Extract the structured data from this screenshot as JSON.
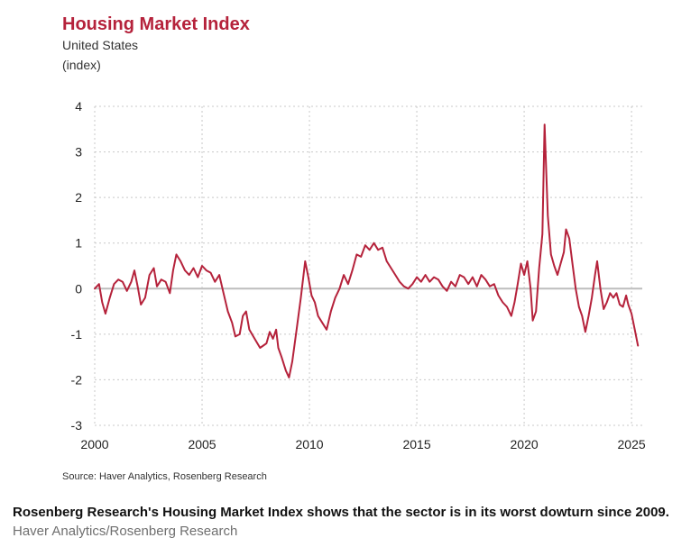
{
  "header": {
    "title": "Housing Market Index",
    "subtitle": "United States",
    "unit": "(index)"
  },
  "source_note": "Source: Haver Analytics, Rosenberg Research",
  "caption": {
    "text": "Rosenberg Research's Housing Market Index shows that the sector is in its worst dowturn since 2009.",
    "credit": "Haver Analytics/Rosenberg Research"
  },
  "colors": {
    "line": "#b5223b",
    "title": "#b5223b",
    "grid": "#c8c8c8",
    "zero_line": "#bdbdbd"
  },
  "chart_data": {
    "type": "line",
    "title": "Housing Market Index",
    "subtitle": "United States",
    "ylabel": "(index)",
    "xlabel": "",
    "xlim": [
      2000,
      2025.5
    ],
    "ylim": [
      -3,
      4
    ],
    "x_ticks": [
      2000,
      2005,
      2010,
      2015,
      2020,
      2025
    ],
    "y_ticks": [
      4,
      3,
      2,
      1,
      0,
      -1,
      -2,
      -3
    ],
    "grid": true,
    "legend": "none",
    "series": [
      {
        "values": [
          [
            2000.0,
            0.0
          ],
          [
            2000.2,
            0.1
          ],
          [
            2000.35,
            -0.3
          ],
          [
            2000.5,
            -0.55
          ],
          [
            2000.7,
            -0.2
          ],
          [
            2000.9,
            0.1
          ],
          [
            2001.1,
            0.2
          ],
          [
            2001.3,
            0.15
          ],
          [
            2001.5,
            -0.05
          ],
          [
            2001.7,
            0.15
          ],
          [
            2001.85,
            0.4
          ],
          [
            2002.0,
            0.05
          ],
          [
            2002.15,
            -0.35
          ],
          [
            2002.35,
            -0.2
          ],
          [
            2002.55,
            0.3
          ],
          [
            2002.75,
            0.45
          ],
          [
            2002.9,
            0.05
          ],
          [
            2003.1,
            0.2
          ],
          [
            2003.3,
            0.15
          ],
          [
            2003.5,
            -0.1
          ],
          [
            2003.65,
            0.4
          ],
          [
            2003.8,
            0.75
          ],
          [
            2004.0,
            0.6
          ],
          [
            2004.2,
            0.4
          ],
          [
            2004.4,
            0.3
          ],
          [
            2004.6,
            0.45
          ],
          [
            2004.8,
            0.25
          ],
          [
            2005.0,
            0.5
          ],
          [
            2005.2,
            0.4
          ],
          [
            2005.4,
            0.35
          ],
          [
            2005.6,
            0.15
          ],
          [
            2005.8,
            0.3
          ],
          [
            2006.0,
            -0.1
          ],
          [
            2006.2,
            -0.5
          ],
          [
            2006.4,
            -0.75
          ],
          [
            2006.55,
            -1.05
          ],
          [
            2006.75,
            -1.0
          ],
          [
            2006.9,
            -0.6
          ],
          [
            2007.05,
            -0.5
          ],
          [
            2007.2,
            -0.9
          ],
          [
            2007.45,
            -1.1
          ],
          [
            2007.7,
            -1.3
          ],
          [
            2007.85,
            -1.25
          ],
          [
            2008.0,
            -1.2
          ],
          [
            2008.15,
            -0.95
          ],
          [
            2008.3,
            -1.1
          ],
          [
            2008.45,
            -0.9
          ],
          [
            2008.55,
            -1.3
          ],
          [
            2008.7,
            -1.5
          ],
          [
            2008.9,
            -1.8
          ],
          [
            2009.05,
            -1.95
          ],
          [
            2009.2,
            -1.6
          ],
          [
            2009.4,
            -0.9
          ],
          [
            2009.6,
            -0.2
          ],
          [
            2009.8,
            0.6
          ],
          [
            2009.95,
            0.25
          ],
          [
            2010.1,
            -0.15
          ],
          [
            2010.25,
            -0.3
          ],
          [
            2010.4,
            -0.6
          ],
          [
            2010.6,
            -0.75
          ],
          [
            2010.8,
            -0.9
          ],
          [
            2011.0,
            -0.5
          ],
          [
            2011.2,
            -0.2
          ],
          [
            2011.4,
            0.0
          ],
          [
            2011.6,
            0.3
          ],
          [
            2011.8,
            0.1
          ],
          [
            2012.0,
            0.4
          ],
          [
            2012.2,
            0.75
          ],
          [
            2012.4,
            0.7
          ],
          [
            2012.6,
            0.95
          ],
          [
            2012.8,
            0.85
          ],
          [
            2013.0,
            1.0
          ],
          [
            2013.2,
            0.85
          ],
          [
            2013.4,
            0.9
          ],
          [
            2013.6,
            0.6
          ],
          [
            2013.8,
            0.45
          ],
          [
            2014.0,
            0.3
          ],
          [
            2014.2,
            0.15
          ],
          [
            2014.4,
            0.05
          ],
          [
            2014.6,
            0.0
          ],
          [
            2014.8,
            0.1
          ],
          [
            2015.0,
            0.25
          ],
          [
            2015.2,
            0.15
          ],
          [
            2015.4,
            0.3
          ],
          [
            2015.6,
            0.15
          ],
          [
            2015.8,
            0.25
          ],
          [
            2016.0,
            0.2
          ],
          [
            2016.2,
            0.05
          ],
          [
            2016.4,
            -0.05
          ],
          [
            2016.6,
            0.15
          ],
          [
            2016.8,
            0.05
          ],
          [
            2017.0,
            0.3
          ],
          [
            2017.2,
            0.25
          ],
          [
            2017.4,
            0.1
          ],
          [
            2017.6,
            0.25
          ],
          [
            2017.8,
            0.05
          ],
          [
            2018.0,
            0.3
          ],
          [
            2018.2,
            0.2
          ],
          [
            2018.4,
            0.05
          ],
          [
            2018.6,
            0.1
          ],
          [
            2018.8,
            -0.15
          ],
          [
            2019.0,
            -0.3
          ],
          [
            2019.2,
            -0.4
          ],
          [
            2019.4,
            -0.6
          ],
          [
            2019.55,
            -0.3
          ],
          [
            2019.7,
            0.1
          ],
          [
            2019.85,
            0.55
          ],
          [
            2020.0,
            0.3
          ],
          [
            2020.15,
            0.6
          ],
          [
            2020.3,
            0.0
          ],
          [
            2020.4,
            -0.7
          ],
          [
            2020.55,
            -0.5
          ],
          [
            2020.7,
            0.45
          ],
          [
            2020.85,
            1.2
          ],
          [
            2020.95,
            3.6
          ],
          [
            2021.1,
            1.6
          ],
          [
            2021.25,
            0.75
          ],
          [
            2021.4,
            0.5
          ],
          [
            2021.55,
            0.3
          ],
          [
            2021.7,
            0.55
          ],
          [
            2021.85,
            0.8
          ],
          [
            2021.95,
            1.3
          ],
          [
            2022.1,
            1.1
          ],
          [
            2022.25,
            0.55
          ],
          [
            2022.4,
            0.0
          ],
          [
            2022.55,
            -0.4
          ],
          [
            2022.7,
            -0.6
          ],
          [
            2022.85,
            -0.95
          ],
          [
            2023.0,
            -0.6
          ],
          [
            2023.15,
            -0.2
          ],
          [
            2023.3,
            0.3
          ],
          [
            2023.4,
            0.6
          ],
          [
            2023.55,
            0.0
          ],
          [
            2023.7,
            -0.45
          ],
          [
            2023.85,
            -0.3
          ],
          [
            2024.0,
            -0.1
          ],
          [
            2024.15,
            -0.2
          ],
          [
            2024.3,
            -0.1
          ],
          [
            2024.45,
            -0.35
          ],
          [
            2024.6,
            -0.4
          ],
          [
            2024.75,
            -0.15
          ],
          [
            2024.85,
            -0.35
          ],
          [
            2025.0,
            -0.55
          ],
          [
            2025.15,
            -0.9
          ],
          [
            2025.3,
            -1.25
          ]
        ]
      }
    ]
  }
}
